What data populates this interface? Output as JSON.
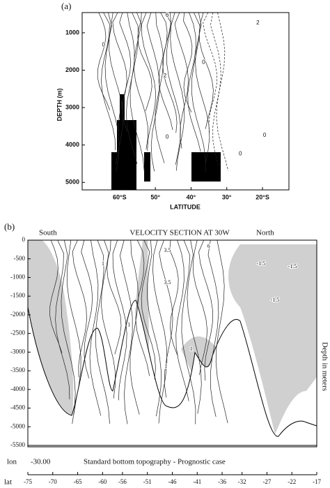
{
  "chart_data": [
    {
      "type": "contour",
      "panel_label": "(a)",
      "ylabel": "DEPTH (m)",
      "xlabel": "LATITUDE",
      "ylim": [
        460,
        5200
      ],
      "yticks": [
        1000,
        2000,
        3000,
        4000,
        5000
      ],
      "xlim": [
        -70.5,
        -12.6
      ],
      "xticks": [
        {
          "value": -60,
          "label": "60°S"
        },
        {
          "value": -50,
          "label": "50°"
        },
        {
          "value": -40,
          "label": "40°"
        },
        {
          "value": -30,
          "label": "30°"
        },
        {
          "value": -20,
          "label": "20°S"
        }
      ],
      "annotations": [
        {
          "x": -46.7,
          "y": 530,
          "value": 6
        },
        {
          "x": -64.5,
          "y": 1330,
          "value": 0
        },
        {
          "x": -47.3,
          "y": 2160,
          "value": 2
        },
        {
          "x": -36.5,
          "y": 1790,
          "value": 0
        },
        {
          "x": -21.3,
          "y": 740,
          "value": 2
        },
        {
          "x": -46.7,
          "y": 3790,
          "value": 0
        },
        {
          "x": -26.2,
          "y": 4240,
          "value": 0
        },
        {
          "x": -19.4,
          "y": 3740,
          "value": 0
        }
      ]
    },
    {
      "type": "contour",
      "panel_label": "(b)",
      "title": "VELOCITY SECTION AT 30W",
      "left_label": "South",
      "right_label": "North",
      "ylabel": "Depth in meters",
      "ylim": [
        0,
        -5500
      ],
      "yticks": [
        0,
        -500,
        -1000,
        -1500,
        -2000,
        -2500,
        -3000,
        -3500,
        -4000,
        -4500,
        -5000,
        -5500
      ],
      "xlim": [
        -75,
        -17
      ],
      "xticks": [
        -75,
        -70,
        -65,
        -60,
        -56,
        -51,
        -46,
        -41,
        -36,
        -32,
        -27,
        -22,
        -17
      ],
      "xlabel": "lat",
      "lon_label": "lon",
      "lon_value": "-30.00",
      "caption": "Standard bottom topography  -  Prognostic case",
      "annotations": [
        {
          "x": -38.7,
          "y": -170,
          "value": 6
        },
        {
          "x": -47.0,
          "y": -280,
          "value": 3.5
        },
        {
          "x": -47.0,
          "y": -1140,
          "value": 3.5
        },
        {
          "x": -59.9,
          "y": -640,
          "value": 1
        },
        {
          "x": -54.7,
          "y": -2280,
          "value": 1
        },
        {
          "x": -47.3,
          "y": -3390,
          "value": 1
        },
        {
          "x": -42.2,
          "y": -2920,
          "value": 1
        },
        {
          "x": -28.2,
          "y": -640,
          "value": -1.5
        },
        {
          "x": -21.9,
          "y": -710,
          "value": -1.5
        },
        {
          "x": -25.4,
          "y": -1610,
          "value": -1.5
        }
      ]
    }
  ]
}
